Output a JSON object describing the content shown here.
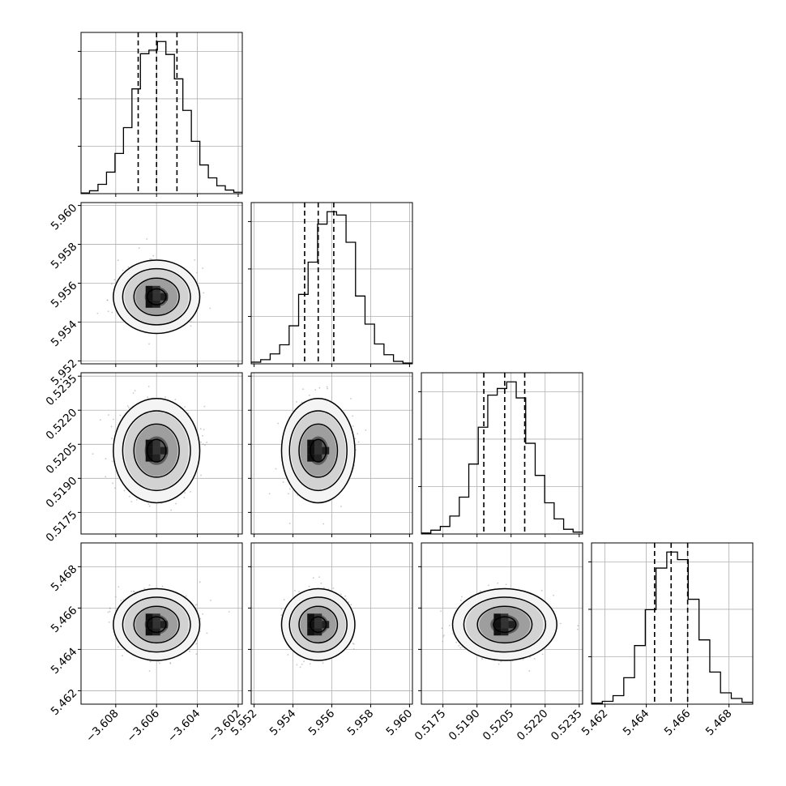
{
  "chart_data": {
    "type": "corner",
    "params": [
      {
        "ticks": [
          "−3.608",
          "−3.606",
          "−3.604",
          "−3.602"
        ],
        "range": [
          -3.6097,
          -3.6018
        ],
        "hist": [
          0.1,
          0.4,
          1.3,
          3.0,
          5.6,
          9.2,
          14.6,
          19.5,
          20.0,
          21.2,
          19.4,
          16.0,
          11.6,
          7.3,
          4.0,
          2.2,
          1.1,
          0.5,
          0.2
        ],
        "quantiles": [
          -3.6069,
          -3.606,
          -3.605
        ],
        "center": -3.606,
        "sd": 0.00083
      },
      {
        "ticks": [
          "5.952",
          "5.954",
          "5.956",
          "5.958",
          "5.960"
        ],
        "range": [
          5.95185,
          5.96015
        ],
        "hist": [
          0.2,
          0.5,
          1.2,
          2.3,
          4.6,
          8.4,
          12.3,
          16.9,
          18.4,
          18.0,
          14.7,
          8.2,
          4.8,
          2.4,
          1.1,
          0.3,
          0.1
        ],
        "quantiles": [
          5.9546,
          5.9553,
          5.9561
        ],
        "center": 5.9553,
        "sd": 0.00074
      },
      {
        "ticks": [
          "0.5175",
          "0.5190",
          "0.5205",
          "0.5220",
          "0.5235"
        ],
        "range": [
          0.51655,
          0.52365
        ],
        "hist": [
          0.1,
          0.4,
          0.8,
          1.9,
          3.9,
          7.4,
          11.3,
          14.7,
          15.4,
          16.1,
          14.4,
          9.6,
          6.2,
          3.3,
          1.6,
          0.5,
          0.2
        ],
        "quantiles": [
          0.5193,
          0.52022,
          0.5211
        ],
        "center": 0.52022,
        "sd": 0.0009
      },
      {
        "ticks": [
          "5.462",
          "5.464",
          "5.466",
          "5.468"
        ],
        "range": [
          5.46135,
          5.46915
        ],
        "hist": [
          0.1,
          0.3,
          0.9,
          2.8,
          6.2,
          10.0,
          14.4,
          16.1,
          15.3,
          11.1,
          6.8,
          3.4,
          1.2,
          0.6,
          0.2
        ],
        "quantiles": [
          5.4644,
          5.4652,
          5.466
        ],
        "center": 5.4652,
        "sd": 0.00068
      }
    ],
    "grid": true,
    "lower_panels": "2d histogram with contours and scatter points",
    "line_color": "#000000",
    "grid_color": "#b0b0b0",
    "point_color": "#9a9a9a"
  }
}
